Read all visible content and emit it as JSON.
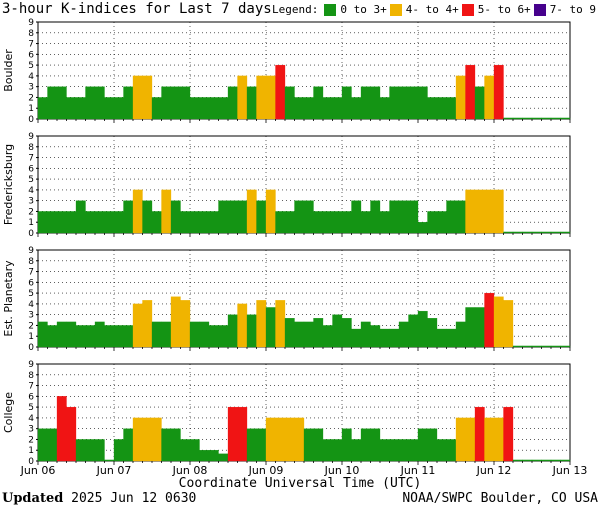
{
  "title": "3-hour K-indices for Last 7 days",
  "legend": {
    "label": "Legend:",
    "items": [
      {
        "label": "0 to 3+",
        "color": "#149414"
      },
      {
        "label": "4- to 4+",
        "color": "#f0b400"
      },
      {
        "label": "5- to 6+",
        "color": "#f01414"
      },
      {
        "label": "7- to 9",
        "color": "#46008c"
      }
    ]
  },
  "x_axis_title": "Coordinate Universal Time (UTC)",
  "footer": {
    "updated_label": "Updated",
    "updated_value": "2025 Jun 12 0630",
    "source": "NOAA/SWPC Boulder, CO USA"
  },
  "chart_data": {
    "type": "bar",
    "x_tick_labels": [
      "Jun 06",
      "Jun 07",
      "Jun 08",
      "Jun 09",
      "Jun 10",
      "Jun 11",
      "Jun 12",
      "Jun 13"
    ],
    "y_tick_labels": [
      "0",
      "1",
      "2",
      "3",
      "4",
      "5",
      "6",
      "7",
      "8",
      "9"
    ],
    "ylim": [
      0,
      9
    ],
    "bars_per_day": 8,
    "grid": true,
    "panels": [
      {
        "name": "Boulder",
        "values": [
          2,
          3,
          3,
          2,
          2,
          3,
          3,
          2,
          2,
          3,
          4,
          4,
          2,
          3,
          3,
          3,
          2,
          2,
          2,
          2,
          3,
          4,
          3,
          4,
          4,
          5,
          3,
          2,
          2,
          3,
          2,
          2,
          3,
          2,
          3,
          3,
          2,
          3,
          3,
          3,
          3,
          2,
          2,
          2,
          4,
          5,
          3,
          4,
          5,
          0.1,
          0.1,
          0.1,
          0.1,
          0.1,
          0.1,
          0.1
        ]
      },
      {
        "name": "Fredericksburg",
        "values": [
          2,
          2,
          2,
          2,
          3,
          2,
          2,
          2,
          2,
          3,
          4,
          3,
          2,
          4,
          3,
          2,
          2,
          2,
          2,
          3,
          3,
          3,
          4,
          3,
          4,
          2,
          2,
          3,
          3,
          2,
          2,
          2,
          2,
          3,
          2,
          3,
          2,
          3,
          3,
          3,
          1,
          2,
          2,
          3,
          3,
          4,
          4,
          4,
          4,
          0.1,
          0.1,
          0.1,
          0.1,
          0.1,
          0.1,
          0.1
        ]
      },
      {
        "name": "Est. Planetary",
        "values": [
          2.33,
          2,
          2.33,
          2.33,
          2,
          2,
          2.33,
          2,
          2,
          2,
          4,
          4.33,
          2.33,
          2.33,
          4.67,
          4.33,
          2.33,
          2.33,
          2,
          2,
          3,
          4,
          3,
          4.33,
          3.67,
          4.33,
          2.67,
          2.33,
          2.33,
          2.67,
          2,
          3,
          2.67,
          1.67,
          2.33,
          2,
          1.67,
          1.67,
          2.33,
          3,
          3.33,
          2.67,
          1.67,
          1.67,
          2.33,
          3.67,
          3.67,
          5,
          4.67,
          4.33,
          0.1,
          0.1,
          0.1,
          0.1,
          0.1,
          0.1
        ]
      },
      {
        "name": "College",
        "values": [
          3,
          3,
          6,
          5,
          2,
          2,
          2,
          0.1,
          2,
          3,
          4,
          4,
          4,
          3,
          3,
          2,
          2,
          1,
          1,
          0.67,
          5,
          5,
          3,
          3,
          4,
          4,
          4,
          4,
          3,
          3,
          2,
          2,
          3,
          2,
          3,
          3,
          2,
          2,
          2,
          2,
          3,
          3,
          2,
          2,
          4,
          4,
          5,
          4,
          4,
          5,
          0.1,
          0.1,
          0.1,
          0.1,
          0.1,
          0.1
        ]
      }
    ]
  }
}
